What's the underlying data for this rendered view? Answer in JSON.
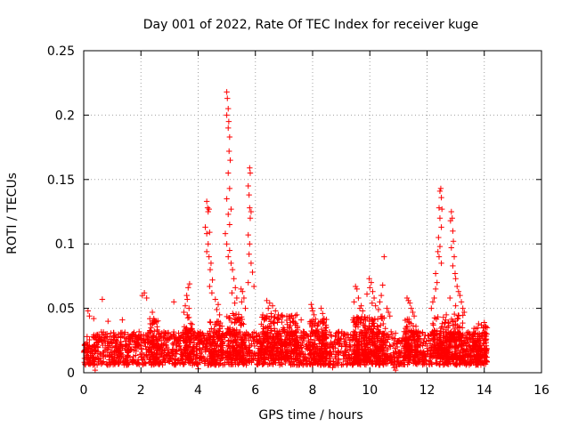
{
  "chart_data": {
    "type": "scatter",
    "title": "Day 001 of 2022, Rate Of TEC Index for receiver kuge",
    "xlabel": "GPS time / hours",
    "ylabel": "ROTI / TECUs",
    "xlim": [
      0,
      16
    ],
    "ylim": [
      0,
      0.25
    ],
    "xticks": [
      0,
      2,
      4,
      6,
      8,
      10,
      12,
      14,
      16
    ],
    "xtick_labels": [
      "0",
      "2",
      "4",
      "6",
      "8",
      "10",
      "12",
      "14",
      "16"
    ],
    "yticks": [
      0,
      0.05,
      0.1,
      0.15,
      0.2,
      0.25
    ],
    "ytick_labels": [
      "0",
      "0.05",
      "0.1",
      "0.15",
      "0.2",
      "0.25"
    ],
    "grid": true,
    "marker": "+",
    "color": "#ff0000",
    "data_time_range_hours": [
      0,
      14.1
    ],
    "baseline_band": [
      0.005,
      0.035
    ],
    "series": [
      {
        "name": "ROTI",
        "points": [
          [
            0.15,
            0.048
          ],
          [
            0.2,
            0.044
          ],
          [
            0.35,
            0.042
          ],
          [
            0.65,
            0.057
          ],
          [
            0.85,
            0.04
          ],
          [
            1.35,
            0.041
          ],
          [
            2.05,
            0.06
          ],
          [
            2.12,
            0.062
          ],
          [
            2.2,
            0.058
          ],
          [
            2.4,
            0.047
          ],
          [
            2.45,
            0.042
          ],
          [
            2.5,
            0.04
          ],
          [
            3.15,
            0.055
          ],
          [
            3.5,
            0.047
          ],
          [
            3.55,
            0.052
          ],
          [
            3.6,
            0.06
          ],
          [
            3.65,
            0.066
          ],
          [
            3.7,
            0.069
          ],
          [
            3.62,
            0.057
          ],
          [
            3.68,
            0.05
          ],
          [
            4.3,
            0.133
          ],
          [
            4.33,
            0.128
          ],
          [
            4.35,
            0.125
          ],
          [
            4.38,
            0.127
          ],
          [
            4.25,
            0.113
          ],
          [
            4.3,
            0.108
          ],
          [
            4.4,
            0.109
          ],
          [
            4.35,
            0.1
          ],
          [
            4.3,
            0.094
          ],
          [
            4.38,
            0.09
          ],
          [
            4.45,
            0.085
          ],
          [
            4.42,
            0.08
          ],
          [
            4.5,
            0.072
          ],
          [
            4.4,
            0.067
          ],
          [
            4.48,
            0.062
          ],
          [
            4.6,
            0.057
          ],
          [
            4.7,
            0.053
          ],
          [
            4.65,
            0.049
          ],
          [
            4.75,
            0.045
          ],
          [
            5.0,
            0.218
          ],
          [
            5.02,
            0.213
          ],
          [
            5.05,
            0.205
          ],
          [
            5.0,
            0.2
          ],
          [
            5.07,
            0.195
          ],
          [
            5.05,
            0.19
          ],
          [
            5.1,
            0.183
          ],
          [
            5.08,
            0.172
          ],
          [
            5.12,
            0.165
          ],
          [
            5.05,
            0.155
          ],
          [
            5.1,
            0.143
          ],
          [
            5.0,
            0.135
          ],
          [
            5.15,
            0.127
          ],
          [
            5.05,
            0.123
          ],
          [
            5.1,
            0.115
          ],
          [
            4.95,
            0.108
          ],
          [
            5.0,
            0.1
          ],
          [
            5.1,
            0.095
          ],
          [
            5.05,
            0.09
          ],
          [
            5.15,
            0.085
          ],
          [
            5.2,
            0.08
          ],
          [
            5.25,
            0.073
          ],
          [
            5.3,
            0.066
          ],
          [
            5.18,
            0.062
          ],
          [
            5.35,
            0.058
          ],
          [
            5.28,
            0.054
          ],
          [
            5.5,
            0.065
          ],
          [
            5.55,
            0.063
          ],
          [
            5.6,
            0.058
          ],
          [
            5.52,
            0.055
          ],
          [
            5.65,
            0.05
          ],
          [
            5.8,
            0.159
          ],
          [
            5.82,
            0.155
          ],
          [
            5.75,
            0.145
          ],
          [
            5.78,
            0.138
          ],
          [
            5.8,
            0.128
          ],
          [
            5.85,
            0.125
          ],
          [
            5.82,
            0.12
          ],
          [
            5.75,
            0.107
          ],
          [
            5.8,
            0.1
          ],
          [
            5.78,
            0.092
          ],
          [
            5.85,
            0.085
          ],
          [
            5.9,
            0.078
          ],
          [
            5.75,
            0.07
          ],
          [
            5.95,
            0.067
          ],
          [
            6.4,
            0.056
          ],
          [
            6.5,
            0.054
          ],
          [
            6.6,
            0.052
          ],
          [
            6.45,
            0.05
          ],
          [
            6.7,
            0.048
          ],
          [
            6.55,
            0.046
          ],
          [
            6.8,
            0.045
          ],
          [
            7.1,
            0.044
          ],
          [
            7.2,
            0.042
          ],
          [
            7.3,
            0.04
          ],
          [
            7.45,
            0.045
          ],
          [
            7.6,
            0.041
          ],
          [
            7.95,
            0.053
          ],
          [
            7.98,
            0.05
          ],
          [
            8.0,
            0.048
          ],
          [
            8.05,
            0.045
          ],
          [
            8.3,
            0.05
          ],
          [
            8.35,
            0.046
          ],
          [
            8.4,
            0.042
          ],
          [
            9.5,
            0.067
          ],
          [
            9.55,
            0.065
          ],
          [
            9.6,
            0.058
          ],
          [
            9.45,
            0.055
          ],
          [
            9.65,
            0.05
          ],
          [
            9.7,
            0.052
          ],
          [
            9.75,
            0.048
          ],
          [
            9.9,
            0.061
          ],
          [
            10.0,
            0.066
          ],
          [
            10.05,
            0.07
          ],
          [
            9.98,
            0.073
          ],
          [
            10.1,
            0.063
          ],
          [
            10.15,
            0.058
          ],
          [
            10.08,
            0.054
          ],
          [
            10.2,
            0.052
          ],
          [
            10.3,
            0.049
          ],
          [
            10.35,
            0.055
          ],
          [
            10.4,
            0.06
          ],
          [
            10.45,
            0.068
          ],
          [
            10.5,
            0.09
          ],
          [
            10.6,
            0.05
          ],
          [
            10.65,
            0.047
          ],
          [
            10.7,
            0.044
          ],
          [
            11.3,
            0.058
          ],
          [
            11.35,
            0.056
          ],
          [
            11.4,
            0.054
          ],
          [
            11.45,
            0.05
          ],
          [
            11.5,
            0.047
          ],
          [
            11.55,
            0.044
          ],
          [
            12.45,
            0.141
          ],
          [
            12.48,
            0.143
          ],
          [
            12.5,
            0.136
          ],
          [
            12.42,
            0.128
          ],
          [
            12.52,
            0.127
          ],
          [
            12.45,
            0.12
          ],
          [
            12.5,
            0.113
          ],
          [
            12.4,
            0.105
          ],
          [
            12.45,
            0.098
          ],
          [
            12.38,
            0.094
          ],
          [
            12.42,
            0.09
          ],
          [
            12.5,
            0.085
          ],
          [
            12.3,
            0.077
          ],
          [
            12.35,
            0.07
          ],
          [
            12.3,
            0.065
          ],
          [
            12.25,
            0.058
          ],
          [
            12.2,
            0.055
          ],
          [
            12.15,
            0.05
          ],
          [
            12.85,
            0.125
          ],
          [
            12.88,
            0.12
          ],
          [
            12.82,
            0.118
          ],
          [
            12.9,
            0.11
          ],
          [
            12.92,
            0.102
          ],
          [
            12.85,
            0.097
          ],
          [
            12.95,
            0.09
          ],
          [
            12.9,
            0.083
          ],
          [
            12.98,
            0.077
          ],
          [
            13.0,
            0.073
          ],
          [
            13.05,
            0.067
          ],
          [
            13.1,
            0.063
          ],
          [
            13.15,
            0.06
          ],
          [
            12.8,
            0.058
          ],
          [
            13.2,
            0.055
          ],
          [
            13.0,
            0.052
          ],
          [
            13.25,
            0.05
          ],
          [
            13.3,
            0.047
          ],
          [
            13.8,
            0.038
          ],
          [
            13.9,
            0.037
          ],
          [
            14.0,
            0.039
          ],
          [
            14.05,
            0.036
          ],
          [
            14.1,
            0.035
          ],
          [
            10.85,
            0.004
          ],
          [
            10.9,
            0.002
          ],
          [
            10.95,
            0.005
          ],
          [
            4.0,
            0.003
          ],
          [
            8.7,
            0.004
          ],
          [
            0.4,
            0.002
          ]
        ]
      }
    ],
    "baseline_segments": [
      {
        "x0": 0,
        "x1": 14.1,
        "lo": 0.006,
        "hi": 0.032
      },
      {
        "x0": 2.3,
        "x1": 2.6,
        "lo": 0.01,
        "hi": 0.042
      },
      {
        "x0": 3.5,
        "x1": 3.8,
        "lo": 0.01,
        "hi": 0.045
      },
      {
        "x0": 4.4,
        "x1": 4.9,
        "lo": 0.01,
        "hi": 0.04
      },
      {
        "x0": 5.0,
        "x1": 5.6,
        "lo": 0.01,
        "hi": 0.046
      },
      {
        "x0": 6.2,
        "x1": 7.5,
        "lo": 0.01,
        "hi": 0.045
      },
      {
        "x0": 7.9,
        "x1": 8.5,
        "lo": 0.01,
        "hi": 0.042
      },
      {
        "x0": 9.4,
        "x1": 10.6,
        "lo": 0.008,
        "hi": 0.044
      },
      {
        "x0": 11.2,
        "x1": 11.7,
        "lo": 0.01,
        "hi": 0.042
      },
      {
        "x0": 12.2,
        "x1": 13.3,
        "lo": 0.01,
        "hi": 0.046
      },
      {
        "x0": 13.6,
        "x1": 14.1,
        "lo": 0.008,
        "hi": 0.036
      }
    ]
  }
}
